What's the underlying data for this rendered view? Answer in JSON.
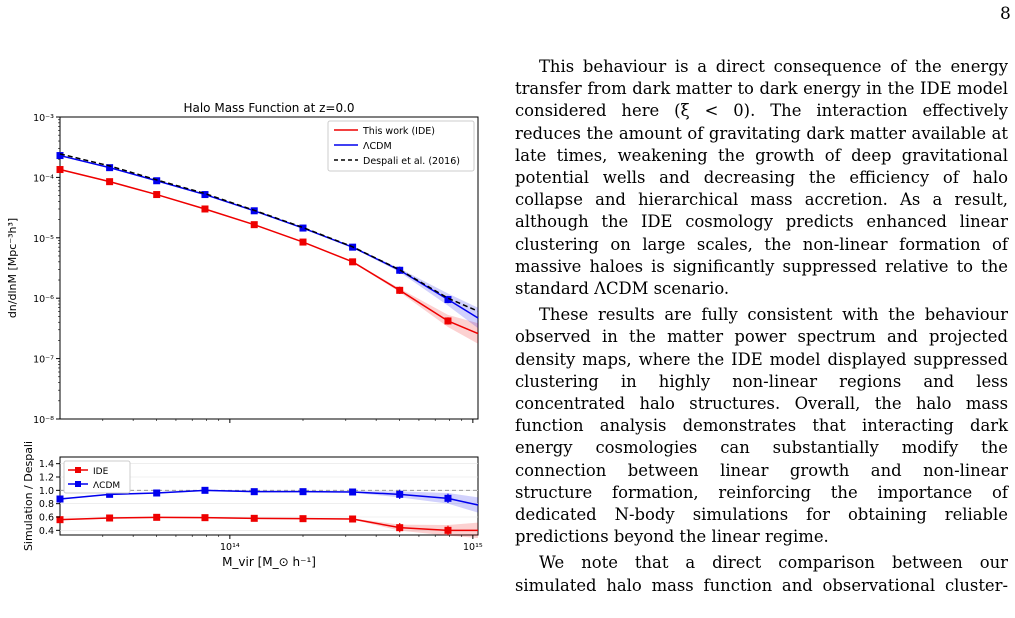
{
  "page": {
    "number": "8"
  },
  "figure": {
    "top_title": "Halo Mass Function at z=0.0",
    "top_ylabel": "dn/dlnM [Mpc⁻³h³]",
    "bottom_ylabel": "Simulation / Despali",
    "xlabel": "M_vir [M_⊙ h⁻¹]"
  },
  "chart_data": [
    {
      "type": "line",
      "title": "Halo Mass Function at z=0.0",
      "xlabel": "M_vir [M_⊙ h⁻¹]",
      "ylabel": "dn/dlnM [Mpc⁻³h³]",
      "xscale": "log",
      "yscale": "log",
      "xlim": [
        20000000000000.0,
        1050000000000000.0
      ],
      "ylim": [
        1e-08,
        0.001
      ],
      "x_ticks": [
        "10¹⁴",
        "10¹⁵"
      ],
      "y_ticks": [
        "10⁻⁸",
        "10⁻⁷",
        "10⁻⁶",
        "10⁻⁵",
        "10⁻⁴",
        "10⁻³"
      ],
      "legend_position": "top-right",
      "x": [
        20000000000000.0,
        32000000000000.0,
        50000000000000.0,
        79000000000000.0,
        126000000000000.0,
        200000000000000.0,
        320000000000000.0,
        500000000000000.0,
        790000000000000.0,
        1050000000000000.0
      ],
      "series": [
        {
          "name": "This work (IDE)",
          "color": "#ee0000",
          "style": "solid",
          "markers": "square",
          "values": [
            0.000135,
            8.5e-05,
            5.2e-05,
            3e-05,
            1.65e-05,
            8.5e-06,
            4e-06,
            1.35e-06,
            4.2e-07,
            2.6e-07
          ]
        },
        {
          "name": "ΛCDM",
          "color": "#0000ee",
          "style": "solid",
          "markers": "square",
          "values": [
            0.00023,
            0.000145,
            8.8e-05,
            5.2e-05,
            2.8e-05,
            1.45e-05,
            7e-06,
            2.9e-06,
            9.5e-07,
            4.7e-07
          ]
        },
        {
          "name": "Despali et al. (2016)",
          "color": "#000000",
          "style": "dashed",
          "markers": "none",
          "values": [
            0.000245,
            0.000155,
            9.1e-05,
            5.4e-05,
            2.85e-05,
            1.48e-05,
            7.1e-06,
            2.95e-06,
            1e-06,
            6.1e-07
          ]
        }
      ]
    },
    {
      "type": "line",
      "xlabel": "M_vir [M_⊙ h⁻¹]",
      "ylabel": "Simulation / Despali",
      "xscale": "log",
      "xlim": [
        20000000000000.0,
        1050000000000000.0
      ],
      "ylim": [
        0.33,
        1.5
      ],
      "x_ticks": [
        "10¹⁴",
        "10¹⁵"
      ],
      "y_ticks": [
        "0.4",
        "0.6",
        "0.8",
        "1.0",
        "1.2",
        "1.4"
      ],
      "reference_line": 1.0,
      "legend_position": "top-left",
      "x": [
        20000000000000.0,
        32000000000000.0,
        50000000000000.0,
        79000000000000.0,
        126000000000000.0,
        200000000000000.0,
        320000000000000.0,
        500000000000000.0,
        790000000000000.0,
        1050000000000000.0
      ],
      "series": [
        {
          "name": "IDE",
          "color": "#ee0000",
          "values": [
            0.56,
            0.585,
            0.595,
            0.59,
            0.58,
            0.575,
            0.57,
            0.44,
            0.4,
            0.4
          ]
        },
        {
          "name": "ΛCDM",
          "color": "#0000ee",
          "values": [
            0.87,
            0.94,
            0.96,
            1.0,
            0.98,
            0.98,
            0.975,
            0.94,
            0.88,
            0.78
          ]
        }
      ]
    }
  ],
  "text": {
    "para1": "This behaviour is a direct consequence of the energy transfer from dark matter to dark energy in the IDE model considered here (ξ < 0). The interaction effectively reduces the amount of gravitating dark matter available at late times, weakening the growth of deep gravitational potential wells and decreasing the efficiency of halo collapse and hierarchical mass accretion. As a result, although the IDE cosmology predicts enhanced linear clustering on large scales, the non-linear formation of massive haloes is significantly suppressed relative to the standard ΛCDM scenario.",
    "para2": "These results are fully consistent with the behaviour observed in the matter power spectrum and projected density maps, where the IDE model displayed suppressed clustering in highly non-linear regions and less concentrated halo structures. Overall, the halo mass function analysis demonstrates that interacting dark energy cosmologies can substantially modify the connection between linear growth and non-linear structure formation, reinforcing the importance of dedicated N-body simulations for obtaining reliable predictions beyond the linear regime.",
    "para3": "We note that a direct comparison between our simulated halo mass function and observational cluster-count data is not straightforward, since observed cluster abun-"
  }
}
